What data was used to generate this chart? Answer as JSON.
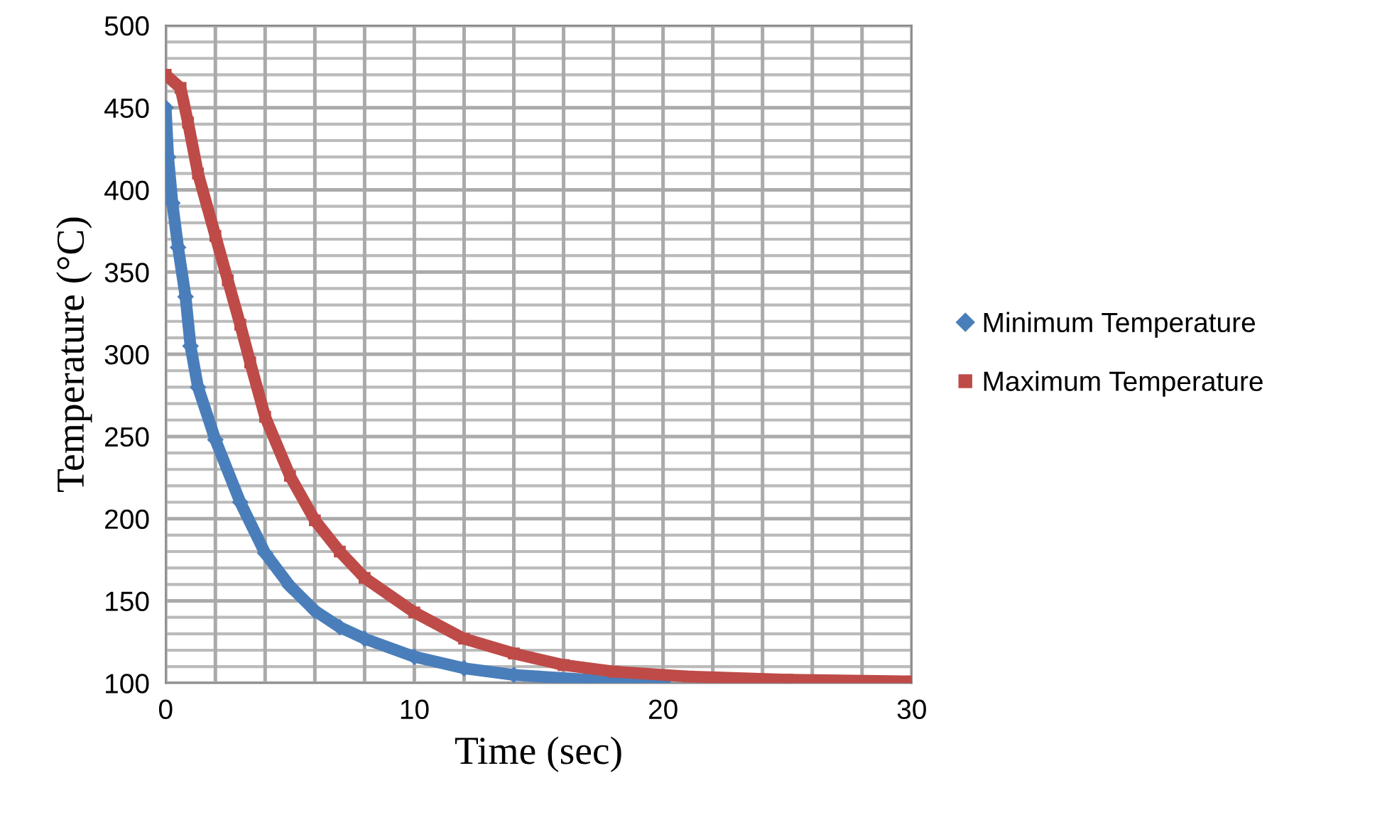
{
  "chart_data": {
    "type": "line",
    "xlabel": "Time (sec)",
    "ylabel": "Temperature (°C)",
    "xlim": [
      0,
      30
    ],
    "ylim": [
      100,
      500
    ],
    "xticks": [
      0,
      {
        "value": 2,
        "label": null
      },
      {
        "value": 4,
        "label": null
      },
      {
        "value": 6,
        "label": null
      },
      {
        "value": 8,
        "label": null
      },
      10,
      {
        "value": 12,
        "label": null
      },
      {
        "value": 14,
        "label": null
      },
      {
        "value": 16,
        "label": null
      },
      {
        "value": 18,
        "label": null
      },
      20,
      {
        "value": 22,
        "label": null
      },
      {
        "value": 24,
        "label": null
      },
      {
        "value": 26,
        "label": null
      },
      {
        "value": 28,
        "label": null
      },
      30
    ],
    "yticks": [
      100,
      150,
      200,
      250,
      300,
      350,
      400,
      450,
      500
    ],
    "grid": true,
    "legend": "right",
    "series": [
      {
        "name": "Minimum Temperature",
        "color": "#4a7ebb",
        "marker": "diamond",
        "x": [
          0,
          0.1,
          0.27,
          0.5,
          0.8,
          1,
          1.3,
          2,
          3,
          4,
          5,
          6,
          7,
          8,
          10,
          12,
          14,
          17,
          20
        ],
        "values": [
          450,
          420,
          392,
          365,
          335,
          305,
          280,
          248,
          210,
          179,
          159,
          144,
          134,
          127,
          116,
          109,
          105,
          102,
          101
        ]
      },
      {
        "name": "Maximum Temperature",
        "color": "#be4b48",
        "marker": "square",
        "x": [
          0,
          0.6,
          0.9,
          1.3,
          2,
          2.5,
          3,
          3.4,
          4,
          5,
          6,
          7,
          8,
          10,
          12,
          14,
          16,
          18,
          21,
          25,
          30
        ],
        "values": [
          470,
          462,
          441,
          410,
          372,
          345,
          318,
          295,
          262,
          226,
          199,
          180,
          164,
          143,
          127,
          118,
          111,
          107,
          104,
          102,
          101
        ]
      }
    ]
  }
}
